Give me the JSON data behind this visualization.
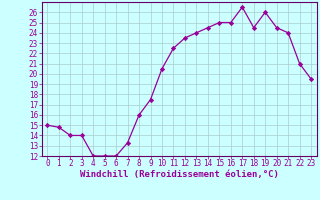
{
  "x": [
    0,
    1,
    2,
    3,
    4,
    5,
    6,
    7,
    8,
    9,
    10,
    11,
    12,
    13,
    14,
    15,
    16,
    17,
    18,
    19,
    20,
    21,
    22,
    23
  ],
  "y": [
    15,
    14.8,
    14,
    14,
    12,
    12,
    12,
    13.3,
    16,
    17.5,
    20.5,
    22.5,
    23.5,
    24,
    24.5,
    25,
    25,
    26.5,
    24.5,
    26,
    24.5,
    24,
    21,
    19.5
  ],
  "line_color": "#990099",
  "marker": "D",
  "marker_size": 2.2,
  "bg_color": "#ccffff",
  "grid_color": "#aacccc",
  "xlabel": "Windchill (Refroidissement éolien,°C)",
  "ylim": [
    12,
    27
  ],
  "xlim": [
    -0.5,
    23.5
  ],
  "yticks": [
    12,
    13,
    14,
    15,
    16,
    17,
    18,
    19,
    20,
    21,
    22,
    23,
    24,
    25,
    26
  ],
  "xticks": [
    0,
    1,
    2,
    3,
    4,
    5,
    6,
    7,
    8,
    9,
    10,
    11,
    12,
    13,
    14,
    15,
    16,
    17,
    18,
    19,
    20,
    21,
    22,
    23
  ],
  "xlabel_fontsize": 6.5,
  "tick_fontsize": 5.5,
  "spine_color": "#660066",
  "title_color": "#990099"
}
